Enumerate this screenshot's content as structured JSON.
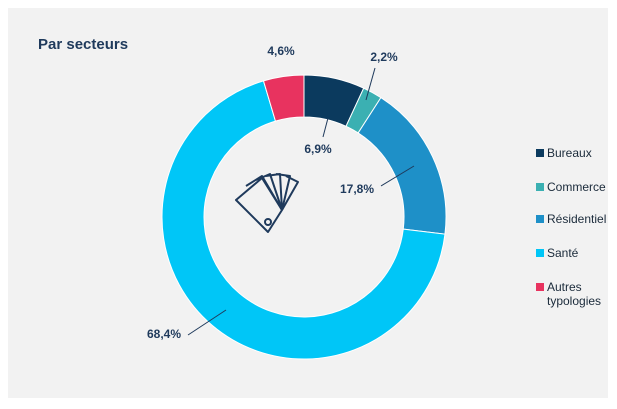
{
  "chart_data": {
    "type": "pie",
    "title": "Par secteurs",
    "categories": [
      "Bureaux",
      "Commerce",
      "Résidentiel",
      "Santé",
      "Autres typologies"
    ],
    "values": [
      6.9,
      2.2,
      17.8,
      68.4,
      4.6
    ],
    "value_labels": [
      "6,9%",
      "2,2%",
      "17,8%",
      "68,4%",
      "4,6%"
    ],
    "colors": [
      "#0b3a5e",
      "#3bb0b2",
      "#1e90c8",
      "#00c6f7",
      "#e8335f"
    ],
    "donut": true,
    "legend": "right"
  }
}
